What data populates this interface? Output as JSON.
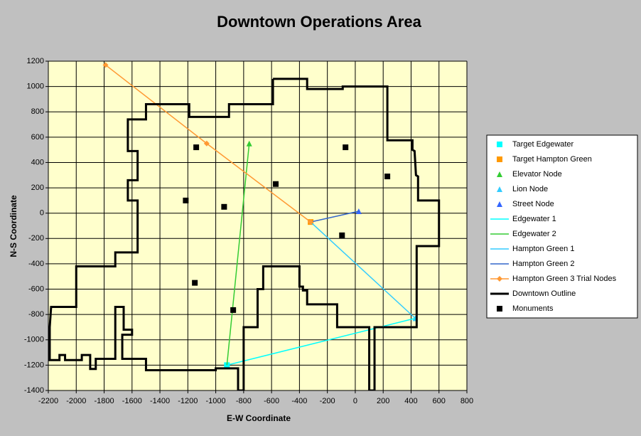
{
  "chart_data": {
    "type": "scatter",
    "title": "Downtown Operations Area",
    "x_label": "E-W Coordinate",
    "y_label": "N-S Coordinate",
    "xlim": [
      -2200,
      800
    ],
    "xticks": [
      -2200,
      -2000,
      -1800,
      -1600,
      -1400,
      -1200,
      -1000,
      -800,
      -600,
      -400,
      -200,
      0,
      200,
      400,
      600,
      800
    ],
    "ylim": [
      -1400,
      1200
    ],
    "yticks": [
      -1400,
      -1200,
      -1000,
      -800,
      -600,
      -400,
      -200,
      0,
      200,
      400,
      600,
      800,
      1000,
      1200
    ],
    "grid": true,
    "legend": "right",
    "plot_color": "#ffffcc",
    "series": [
      {
        "name": "Target Edgewater",
        "color": "#00ffff",
        "marker": "square",
        "line": false,
        "x": [
          -920
        ],
        "y": [
          -1200
        ]
      },
      {
        "name": "Target Hampton Green",
        "color": "#ff9900",
        "marker": "square",
        "line": false,
        "x": [
          -320
        ],
        "y": [
          -70
        ]
      },
      {
        "name": "Elevator Node",
        "color": "#33cc33",
        "marker": "triangle",
        "line": false,
        "x": [
          -760
        ],
        "y": [
          550
        ]
      },
      {
        "name": "Lion Node",
        "color": "#33ccff",
        "marker": "triangle",
        "line": false,
        "x": [
          430
        ],
        "y": [
          -830
        ]
      },
      {
        "name": "Street Node",
        "color": "#3366ff",
        "marker": "triangle",
        "line": false,
        "x": [
          25
        ],
        "y": [
          15
        ]
      },
      {
        "name": "Edgewater 1",
        "color": "#00ffff",
        "marker": "none",
        "line": true,
        "x": [
          -920,
          430
        ],
        "y": [
          -1200,
          -830
        ]
      },
      {
        "name": "Edgewater 2",
        "color": "#33cc33",
        "marker": "none",
        "line": true,
        "x": [
          -920,
          -760
        ],
        "y": [
          -1200,
          550
        ]
      },
      {
        "name": "Hampton Green 1",
        "color": "#33ccff",
        "marker": "none",
        "line": true,
        "x": [
          -320,
          430
        ],
        "y": [
          -70,
          -830
        ]
      },
      {
        "name": "Hampton Green 2",
        "color": "#3366cc",
        "marker": "none",
        "line": true,
        "x": [
          -320,
          25
        ],
        "y": [
          -70,
          15
        ]
      },
      {
        "name": "Hampton Green 3 Trial Nodes",
        "color": "#ff9933",
        "marker": "diamond",
        "line": true,
        "x": [
          -1790,
          -1065,
          -320
        ],
        "y": [
          1170,
          550,
          -70
        ]
      },
      {
        "name": "Downtown Outline",
        "color": "#000000",
        "marker": "none",
        "line": true,
        "x": [
          -590,
          -345,
          -345,
          -90,
          -90,
          230,
          230,
          410,
          410,
          425,
          435,
          450,
          450,
          600,
          600,
          440,
          440,
          138,
          138,
          100,
          100,
          -130,
          -130,
          -345,
          -345,
          -375,
          -375,
          -400,
          -400,
          -660,
          -660,
          -700,
          -700,
          -800,
          -800,
          -840,
          -840,
          -1000,
          -1000,
          -1210,
          -1210,
          -1500,
          -1500,
          -1670,
          -1670,
          -1600,
          -1600,
          -1660,
          -1660,
          -1720,
          -1720,
          -1860,
          -1860,
          -1900,
          -1900,
          -1960,
          -1960,
          -2080,
          -2080,
          -2120,
          -2120,
          -2190,
          -2190,
          -2180,
          -2000,
          -2000,
          -1720,
          -1720,
          -1560,
          -1560,
          -1630,
          -1630,
          -1560,
          -1560,
          -1630,
          -1630,
          -1500,
          -1500,
          -1190,
          -1190,
          -905,
          -905,
          -590,
          -590
        ],
        "y": [
          1060,
          1060,
          980,
          980,
          1000,
          1000,
          575,
          575,
          500,
          490,
          300,
          290,
          100,
          100,
          -260,
          -260,
          -900,
          -900,
          -1400,
          -1400,
          -900,
          -900,
          -720,
          -720,
          -610,
          -610,
          -580,
          -580,
          -420,
          -420,
          -600,
          -600,
          -900,
          -900,
          -1400,
          -1400,
          -1225,
          -1225,
          -1240,
          -1240,
          -1240,
          -1240,
          -1150,
          -1150,
          -960,
          -960,
          -920,
          -920,
          -740,
          -740,
          -1150,
          -1150,
          -1230,
          -1230,
          -1120,
          -1120,
          -1160,
          -1160,
          -1120,
          -1120,
          -1160,
          -1160,
          -900,
          -740,
          -740,
          -420,
          -420,
          -310,
          -310,
          100,
          100,
          260,
          260,
          490,
          490,
          740,
          740,
          860,
          860,
          760,
          760,
          860,
          860,
          1060
        ]
      },
      {
        "name": "Monuments",
        "color": "#000000",
        "marker": "square",
        "line": false,
        "x": [
          -1140,
          -70,
          230,
          -570,
          -1215,
          -940,
          -95,
          -1150,
          -875
        ],
        "y": [
          520,
          520,
          290,
          230,
          100,
          50,
          -175,
          -550,
          -765
        ]
      }
    ]
  }
}
